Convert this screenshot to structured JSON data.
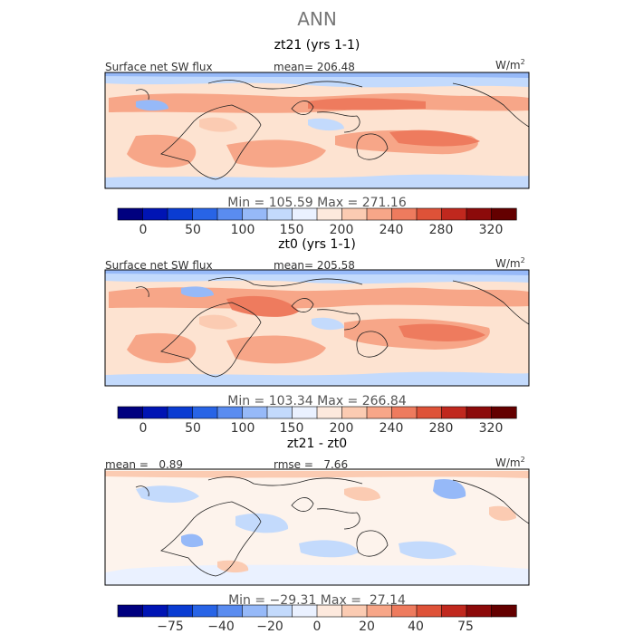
{
  "figure": {
    "title": "ANN"
  },
  "chart_data": [
    {
      "type": "heatmap",
      "title": "zt21 (yrs 1-1)",
      "field_label": "Surface net SW flux",
      "stat_text": "mean= 206.48",
      "units": "W/m",
      "units_exp": "2",
      "min_max_text": "Min = 105.59 Max = 271.16",
      "colorbar": {
        "boundaries": [
          0,
          25,
          50,
          75,
          100,
          125,
          150,
          175,
          200,
          220,
          240,
          260,
          280,
          300,
          320
        ],
        "tick_labels": [
          "0",
          "50",
          "100",
          "150",
          "200",
          "240",
          "280",
          "320"
        ]
      }
    },
    {
      "type": "heatmap",
      "title": "zt0 (yrs 1-1)",
      "field_label": "Surface net SW flux",
      "stat_text": "mean= 205.58",
      "units": "W/m",
      "units_exp": "2",
      "min_max_text": "Min = 103.34 Max = 266.84",
      "colorbar": {
        "boundaries": [
          0,
          25,
          50,
          75,
          100,
          125,
          150,
          175,
          200,
          220,
          240,
          260,
          280,
          300,
          320
        ],
        "tick_labels": [
          "0",
          "50",
          "100",
          "150",
          "200",
          "240",
          "280",
          "320"
        ]
      }
    },
    {
      "type": "heatmap",
      "title": "zt21 - zt0",
      "mean_text": "mean =   0.89",
      "rmse_text": "rmse =   7.66",
      "units": "W/m",
      "units_exp": "2",
      "min_max_text": "Min = −29.31 Max =  27.14",
      "colorbar": {
        "tick_labels": [
          "−75",
          "−40",
          "−20",
          "0",
          "20",
          "40",
          "75"
        ]
      }
    }
  ],
  "palette": {
    "colorbar": [
      "#00007f",
      "#0014b4",
      "#0a3cd2",
      "#2864e6",
      "#5a8cf0",
      "#96b9f8",
      "#c3dafc",
      "#eaf1ff",
      "#fde9dd",
      "#fbcbb2",
      "#f7a688",
      "#ee7b5e",
      "#de5238",
      "#c0281e",
      "#8c0a0a",
      "#640000"
    ],
    "map_background_abs": "#fde3d1",
    "map_background_diff": "#fdf3ec",
    "land_line": "#222222"
  }
}
